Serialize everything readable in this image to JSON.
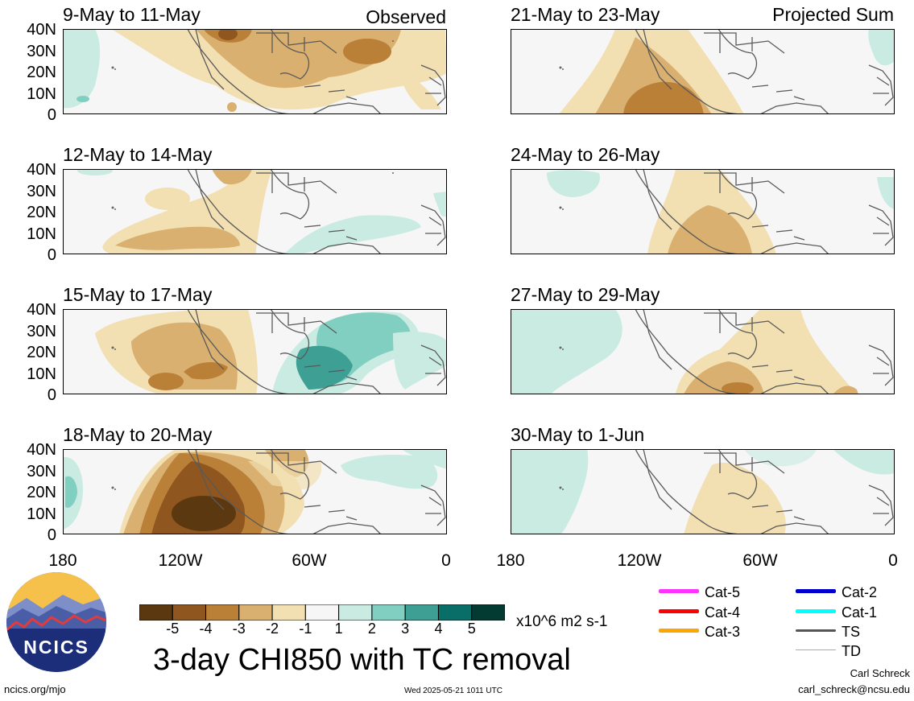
{
  "panels": [
    {
      "title": "9-May to 11-May",
      "tag": "Observed"
    },
    {
      "title": "12-May to 14-May",
      "tag": ""
    },
    {
      "title": "15-May to 17-May",
      "tag": ""
    },
    {
      "title": "18-May to 20-May",
      "tag": ""
    },
    {
      "title": "21-May to 23-May",
      "tag": "Projected Sum"
    },
    {
      "title": "24-May to 26-May",
      "tag": ""
    },
    {
      "title": "27-May to 29-May",
      "tag": ""
    },
    {
      "title": "30-May to 1-Jun",
      "tag": ""
    }
  ],
  "y_ticks": [
    "40N",
    "30N",
    "20N",
    "10N",
    "0"
  ],
  "x_ticks": [
    "180",
    "120W",
    "60W",
    "0"
  ],
  "colorbar": {
    "labels": [
      "-5",
      "-4",
      "-3",
      "-2",
      "-1",
      "1",
      "2",
      "3",
      "4",
      "5"
    ],
    "colors": [
      "#5c3810",
      "#8f5620",
      "#bb8038",
      "#d9b070",
      "#f2dfb2",
      "#f6f6f6",
      "#c9ebe2",
      "#80cfc0",
      "#3e9f94",
      "#0a6e68",
      "#033b33"
    ],
    "units": "x10^6 m2 s-1"
  },
  "tc_legend": [
    {
      "label": "Cat-5",
      "color": "#ff33ff"
    },
    {
      "label": "Cat-4",
      "color": "#ff0000"
    },
    {
      "label": "Cat-3",
      "color": "#ffa500"
    },
    {
      "label": "Cat-2",
      "color": "#0000cd"
    },
    {
      "label": "Cat-1",
      "color": "#00ffff"
    },
    {
      "label": "TS",
      "color": "#555555"
    },
    {
      "label": "TD",
      "color": "#aaaaaa"
    }
  ],
  "main_title": "3-day CHI850 with TC removal",
  "logo_text": "NCICS",
  "footer": {
    "left": "ncics.org/mjo",
    "center": "Wed 2025-05-21 1011 UTC",
    "author": "Carl Schreck",
    "email": "carl_schreck@ncsu.edu"
  }
}
